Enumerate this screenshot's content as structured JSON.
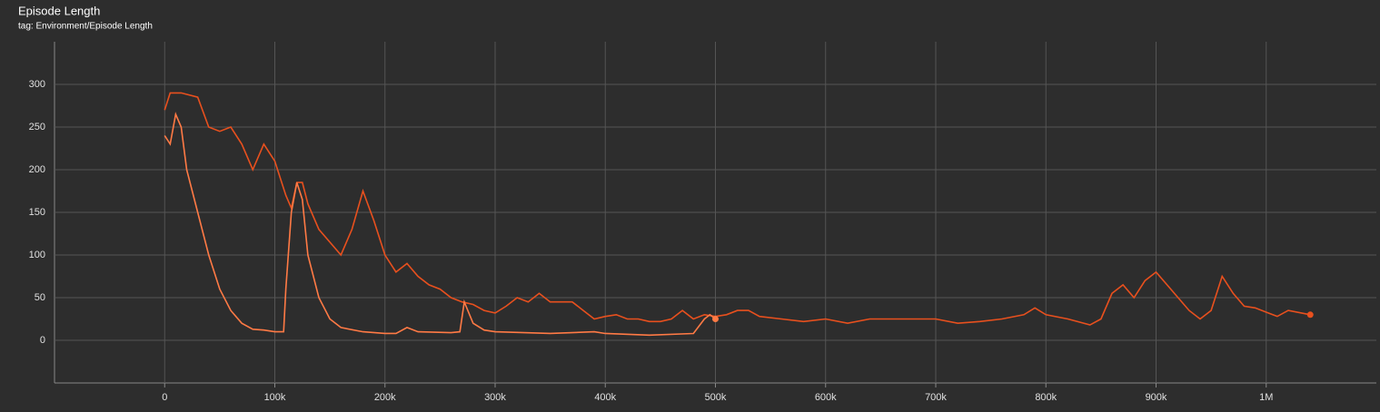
{
  "chart_data": {
    "type": "line",
    "title": "Episode Length",
    "subtitle": "tag: Environment/Episode Length",
    "xlim": [
      -100000,
      1100000
    ],
    "ylim": [
      -50,
      350
    ],
    "xticks": [
      0,
      {
        "value": 100000,
        "label": "100k"
      },
      {
        "value": 200000,
        "label": "200k"
      },
      {
        "value": 300000,
        "label": "300k"
      },
      {
        "value": 400000,
        "label": "400k"
      },
      {
        "value": 500000,
        "label": "500k"
      },
      {
        "value": 600000,
        "label": "600k"
      },
      {
        "value": 700000,
        "label": "700k"
      },
      {
        "value": 800000,
        "label": "800k"
      },
      {
        "value": 900000,
        "label": "900k"
      },
      {
        "value": 1000000,
        "label": "1M"
      }
    ],
    "yticks": [
      0,
      50,
      100,
      150,
      200,
      250,
      300
    ],
    "grid": true,
    "series": [
      {
        "color": "#e8501e",
        "x": [
          0,
          5000,
          15000,
          30000,
          40000,
          50000,
          60000,
          70000,
          80000,
          90000,
          100000,
          110000,
          115000,
          120000,
          125000,
          130000,
          140000,
          150000,
          160000,
          170000,
          180000,
          190000,
          200000,
          210000,
          220000,
          230000,
          240000,
          250000,
          260000,
          270000,
          280000,
          290000,
          300000,
          310000,
          320000,
          330000,
          340000,
          350000,
          360000,
          370000,
          380000,
          390000,
          400000,
          410000,
          420000,
          430000,
          440000,
          450000,
          460000,
          470000,
          480000,
          490000,
          500000,
          510000,
          520000,
          530000,
          540000,
          560000,
          580000,
          600000,
          620000,
          640000,
          660000,
          680000,
          700000,
          720000,
          740000,
          760000,
          780000,
          790000,
          800000,
          820000,
          840000,
          850000,
          860000,
          870000,
          880000,
          890000,
          900000,
          910000,
          920000,
          930000,
          940000,
          950000,
          960000,
          970000,
          980000,
          990000,
          1000000,
          1010000,
          1020000,
          1040000
        ],
        "values": [
          270,
          290,
          290,
          285,
          250,
          245,
          250,
          230,
          200,
          230,
          210,
          170,
          155,
          185,
          185,
          160,
          130,
          115,
          100,
          130,
          175,
          140,
          100,
          80,
          90,
          75,
          65,
          60,
          50,
          45,
          42,
          35,
          32,
          40,
          50,
          45,
          55,
          45,
          45,
          45,
          35,
          25,
          28,
          30,
          25,
          25,
          22,
          22,
          25,
          35,
          25,
          30,
          28,
          30,
          35,
          35,
          28,
          25,
          22,
          25,
          20,
          25,
          25,
          25,
          25,
          20,
          22,
          25,
          30,
          38,
          30,
          25,
          18,
          25,
          55,
          65,
          50,
          70,
          80,
          65,
          50,
          35,
          25,
          35,
          75,
          55,
          40,
          38,
          33,
          28,
          35,
          30
        ]
      },
      {
        "color": "#ff7a45",
        "x": [
          0,
          5000,
          10000,
          15000,
          20000,
          30000,
          40000,
          50000,
          60000,
          70000,
          80000,
          90000,
          100000,
          108000,
          110000,
          115000,
          120000,
          125000,
          130000,
          140000,
          150000,
          160000,
          180000,
          200000,
          210000,
          220000,
          230000,
          260000,
          268000,
          272000,
          280000,
          290000,
          300000,
          350000,
          390000,
          400000,
          440000,
          480000,
          490000,
          495000,
          500000
        ],
        "values": [
          240,
          230,
          265,
          250,
          200,
          150,
          100,
          60,
          35,
          20,
          13,
          12,
          10,
          10,
          60,
          150,
          185,
          165,
          100,
          50,
          25,
          15,
          10,
          8,
          8,
          15,
          10,
          9,
          10,
          45,
          20,
          12,
          10,
          8,
          10,
          8,
          6,
          8,
          25,
          30,
          25
        ]
      }
    ]
  }
}
